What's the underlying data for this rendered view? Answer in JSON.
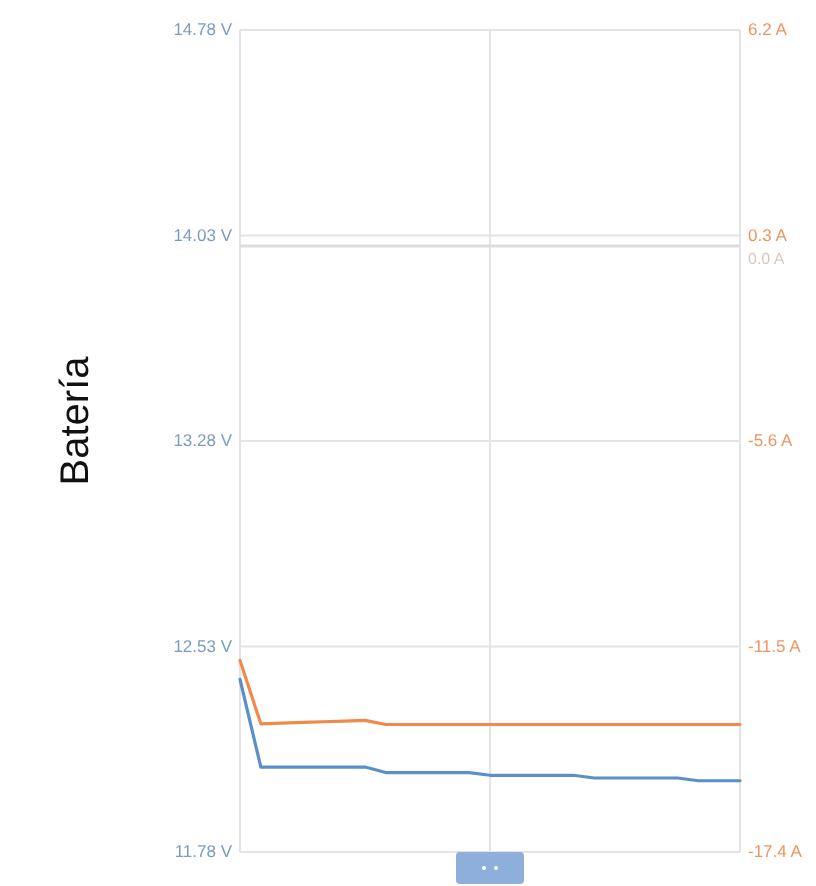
{
  "chart_data": {
    "type": "line",
    "ylabel": "Batería",
    "categories": [
      null,
      null,
      null,
      null,
      null,
      null,
      null,
      null,
      null,
      null,
      null,
      null,
      null,
      null,
      null,
      null,
      null,
      null,
      null,
      null,
      null,
      null,
      null,
      null,
      null
    ],
    "series": [
      {
        "color": "#5b8fc9",
        "values": [
          12.41,
          12.09,
          12.09,
          12.09,
          12.09,
          12.09,
          12.09,
          12.07,
          12.07,
          12.07,
          12.07,
          12.07,
          12.06,
          12.06,
          12.06,
          12.06,
          12.06,
          12.05,
          12.05,
          12.05,
          12.05,
          12.05,
          12.04,
          12.04,
          12.04
        ]
      },
      {
        "color": "#f08a4b",
        "axis": "y2",
        "values": [
          -11.9,
          -13.72,
          -13.7,
          -13.68,
          -13.66,
          -13.64,
          -13.62,
          -13.74,
          -13.74,
          -13.74,
          -13.74,
          -13.74,
          -13.74,
          -13.74,
          -13.74,
          -13.74,
          -13.74,
          -13.74,
          -13.74,
          -13.74,
          -13.74,
          -13.74,
          -13.74,
          -13.74,
          -13.74
        ]
      }
    ],
    "ylim": [
      11.78,
      14.78
    ],
    "yticks": [
      {
        "value": 11.78,
        "label": "11.78 V"
      },
      {
        "value": 12.53,
        "label": "12.53 V"
      },
      {
        "value": 13.28,
        "label": "13.28 V"
      },
      {
        "value": 14.03,
        "label": "14.03 V"
      },
      {
        "value": 14.78,
        "label": "14.78 V"
      }
    ],
    "y2lim": [
      -17.4,
      6.2
    ],
    "y2ticks": [
      {
        "value": -17.4,
        "label": "-17.4 A"
      },
      {
        "value": -11.5,
        "label": "-11.5 A"
      },
      {
        "value": -5.6,
        "label": "-5.6 A"
      },
      {
        "value": 0.3,
        "label": "0.3 A"
      },
      {
        "value": 6.2,
        "label": "6.2 A"
      }
    ],
    "ref_lines": [
      {
        "axis": "y2",
        "value": 0,
        "label": "0.0 A",
        "color": "#dddddd"
      }
    ],
    "grid": true
  }
}
